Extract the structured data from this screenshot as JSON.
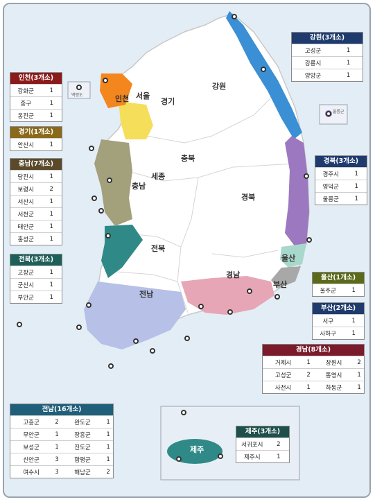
{
  "colors": {
    "sea": "#e3edf6",
    "land": "#ffffff",
    "border": "#c9c9c9",
    "gangwon": "#3b8fd4",
    "gyeongbuk": "#9b78bf",
    "ulsan": "#a8d8cc",
    "busan": "#a8a8a8",
    "gyeongnam": "#e7a6b6",
    "jeonnam": "#b7c0e6",
    "jeonbuk": "#2f8a87",
    "chungnam": "#a3a07c",
    "gyeonggi": "#f5de5a",
    "incheon": "#f3861d",
    "jeju": "#2f8a87"
  },
  "regions": {
    "gangwon_label": "강원",
    "gyeonggi_label": "경기",
    "seoul_label": "서울",
    "incheon_label": "인천",
    "chungbuk_label": "충북",
    "sejong_label": "세종",
    "chungnam_label": "충남",
    "gyeongbuk_label": "경북",
    "jeonbuk_label": "전북",
    "jeonnam_label": "전남",
    "gyeongnam_label": "경남",
    "ulsan_label": "울산",
    "busan_label": "부산",
    "jeju_label": "제주"
  },
  "map_small_labels": {
    "baengnyeong": "백령도",
    "ulleung": "울릉군"
  },
  "tables": {
    "gangwon": {
      "title": "강원(3개소)",
      "color": "#1f3b6e",
      "rows": [
        [
          "고성군",
          "1"
        ],
        [
          "강릉시",
          "1"
        ],
        [
          "양양군",
          "1"
        ]
      ]
    },
    "incheon": {
      "title": "인천(3개소)",
      "color": "#8b1a1a",
      "rows": [
        [
          "강화군",
          "1"
        ],
        [
          "중구",
          "1"
        ],
        [
          "옹진군",
          "1"
        ]
      ]
    },
    "gyeonggi": {
      "title": "경기(1개소)",
      "color": "#8a6a1a",
      "rows": [
        [
          "안산시",
          "1"
        ]
      ]
    },
    "chungnam": {
      "title": "충남(7개소)",
      "color": "#5a4a2a",
      "rows": [
        [
          "당진시",
          "1"
        ],
        [
          "보령시",
          "2"
        ],
        [
          "서산시",
          "1"
        ],
        [
          "서천군",
          "1"
        ],
        [
          "태안군",
          "1"
        ],
        [
          "홍성군",
          "1"
        ]
      ]
    },
    "jeonbuk": {
      "title": "전북(3개소)",
      "color": "#1f5f5a",
      "rows": [
        [
          "고창군",
          "1"
        ],
        [
          "군산시",
          "1"
        ],
        [
          "부안군",
          "1"
        ]
      ]
    },
    "gyeongbuk": {
      "title": "경북(3개소)",
      "color": "#1f3b6e",
      "rows": [
        [
          "경주시",
          "1"
        ],
        [
          "영덕군",
          "1"
        ],
        [
          "울릉군",
          "1"
        ]
      ]
    },
    "ulsan": {
      "title": "울산(1개소)",
      "color": "#5a6a1a",
      "rows": [
        [
          "울주군",
          "1"
        ]
      ]
    },
    "busan": {
      "title": "부산(2개소)",
      "color": "#1f3b6e",
      "rows": [
        [
          "서구",
          "1"
        ],
        [
          "사하구",
          "1"
        ]
      ]
    },
    "gyeongnam": {
      "title": "경남(8개소)",
      "color": "#7a1a2a",
      "rows": [
        [
          "거제시",
          "1",
          "창원시",
          "2"
        ],
        [
          "고성군",
          "2",
          "통영시",
          "1"
        ],
        [
          "사천시",
          "1",
          "하동군",
          "1"
        ]
      ]
    },
    "jeonnam": {
      "title": "전남(16개소)",
      "color": "#1f5f7a",
      "rows": [
        [
          "고흥군",
          "2",
          "완도군",
          "1"
        ],
        [
          "무안군",
          "1",
          "장흥군",
          "1"
        ],
        [
          "보성군",
          "1",
          "진도군",
          "1"
        ],
        [
          "신안군",
          "3",
          "함평군",
          "1"
        ],
        [
          "여수시",
          "3",
          "해남군",
          "2"
        ]
      ]
    },
    "jeju": {
      "title": "제주(3개소)",
      "color": "#1f4f4a",
      "rows": [
        [
          "서귀포시",
          "2"
        ],
        [
          "제주시",
          "1"
        ]
      ]
    }
  }
}
